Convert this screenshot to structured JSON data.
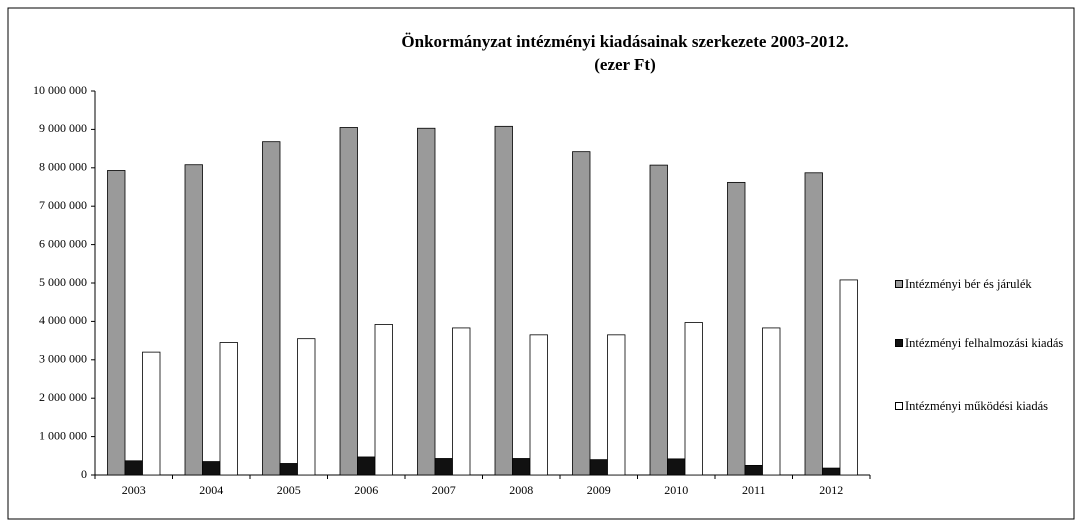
{
  "chart_data": {
    "type": "bar",
    "title": "Önkormányzat intézményi kiadásainak szerkezete 2003-2012.",
    "subtitle": "(ezer Ft)",
    "categories": [
      "2003",
      "2004",
      "2005",
      "2006",
      "2007",
      "2008",
      "2009",
      "2010",
      "2011",
      "2012"
    ],
    "series": [
      {
        "name": "Intézményi bér és járulék",
        "color": "#9a9a9a",
        "values": [
          7930000,
          8080000,
          8680000,
          9050000,
          9030000,
          9080000,
          8420000,
          8070000,
          7620000,
          7870000
        ]
      },
      {
        "name": "Intézményi felhalmozási kiadás",
        "color": "#111111",
        "values": [
          370000,
          350000,
          300000,
          470000,
          430000,
          430000,
          400000,
          420000,
          250000,
          180000
        ]
      },
      {
        "name": "Intézményi működési kiadás",
        "color": "#ffffff",
        "values": [
          3200000,
          3450000,
          3550000,
          3920000,
          3830000,
          3650000,
          3650000,
          3970000,
          3830000,
          5080000
        ]
      }
    ],
    "ylim": [
      0,
      10000000
    ],
    "yticks": [
      0,
      {
        "value": 1000000,
        "label": "1 000 000"
      },
      {
        "value": 2000000,
        "label": "2 000 000"
      },
      {
        "value": 3000000,
        "label": "3 000 000"
      },
      {
        "value": 4000000,
        "label": "4 000 000"
      },
      {
        "value": 5000000,
        "label": "5 000 000"
      },
      {
        "value": 6000000,
        "label": "6 000 000"
      },
      {
        "value": 7000000,
        "label": "7 000 000"
      },
      {
        "value": 8000000,
        "label": "8 000 000"
      },
      {
        "value": 9000000,
        "label": "9 000 000"
      },
      {
        "value": 10000000,
        "label": "10 000 000"
      }
    ],
    "grid": false,
    "legend": "right"
  }
}
